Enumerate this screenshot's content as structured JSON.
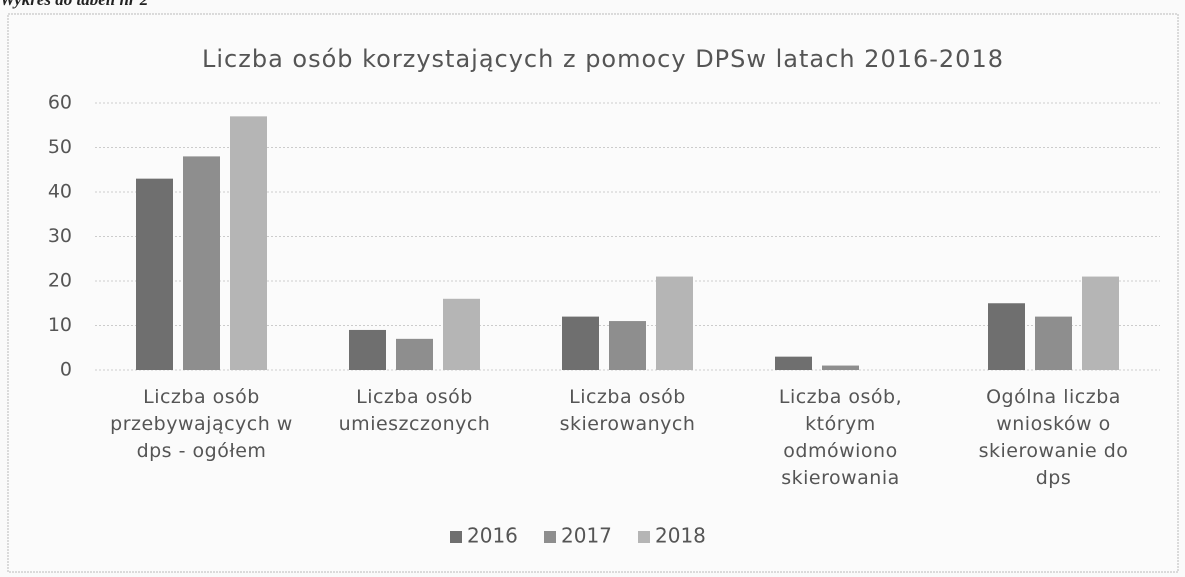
{
  "caption": "Wykres do tabeli nr 2",
  "chart_data": {
    "type": "bar",
    "title": "Liczba osób korzystających z pomocy DPSw latach 2016-2018",
    "categories": [
      "Liczba osób przebywających w dps - ogółem",
      "Liczba osób umieszczonych",
      "Liczba osób skierowanych",
      "Liczba osób, którym odmówiono skierowania",
      "Ogólna liczba wniosków o skierowanie do dps"
    ],
    "series": [
      {
        "name": "2016",
        "color": "#6f6f6f",
        "values": [
          43,
          9,
          12,
          3,
          15
        ]
      },
      {
        "name": "2017",
        "color": "#8e8e8e",
        "values": [
          48,
          7,
          11,
          1,
          12
        ]
      },
      {
        "name": "2018",
        "color": "#b5b5b5",
        "values": [
          57,
          16,
          21,
          0,
          21
        ]
      }
    ],
    "ylim": [
      0,
      60
    ],
    "yticks": [
      0,
      10,
      20,
      30,
      40,
      50,
      60
    ],
    "grid": true,
    "legend": "bottom"
  }
}
